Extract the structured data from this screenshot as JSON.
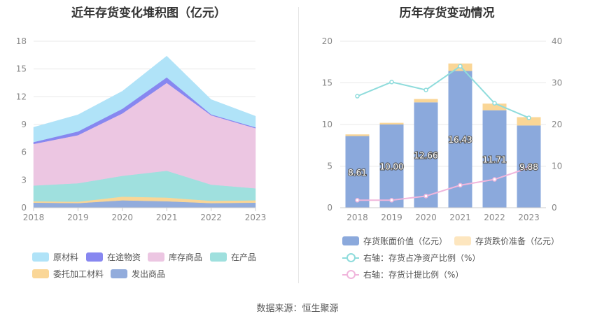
{
  "left": {
    "title": "近年存货变化堆积图（亿元）",
    "legend": [
      {
        "label": "原材料",
        "color": "#b0e3f8"
      },
      {
        "label": "在途物资",
        "color": "#8787f0"
      },
      {
        "label": "库存商品",
        "color": "#ecc6e2"
      },
      {
        "label": "在产品",
        "color": "#9fe0de"
      },
      {
        "label": "委托加工材料",
        "color": "#fad696"
      },
      {
        "label": "发出商品",
        "color": "#92acdc"
      }
    ]
  },
  "right": {
    "title": "历年存货变动情况",
    "legend": {
      "bar_value": "存货账面价值（亿元）",
      "bar_reserve": "存货跌价准备（亿元）",
      "line_ratio": "右轴：存货占净资产比例（%）",
      "line_provision": "右轴：存货计提比例（%）"
    }
  },
  "source": "数据来源：恒生聚源",
  "chart_data": [
    {
      "type": "area",
      "stacked": true,
      "title": "近年存货变化堆积图（亿元）",
      "x": [
        "2018",
        "2019",
        "2020",
        "2021",
        "2022",
        "2023"
      ],
      "ylim": [
        0,
        18
      ],
      "yticks": [
        0,
        3,
        6,
        9,
        12,
        15,
        18
      ],
      "series": [
        {
          "name": "发出商品",
          "color": "#92acdc",
          "values": [
            0.55,
            0.5,
            0.8,
            0.7,
            0.5,
            0.55
          ]
        },
        {
          "name": "委托加工材料",
          "color": "#fad696",
          "values": [
            0.15,
            0.15,
            0.4,
            0.4,
            0.25,
            0.25
          ]
        },
        {
          "name": "在产品",
          "color": "#9fe0de",
          "values": [
            1.7,
            2.0,
            2.25,
            2.9,
            1.75,
            1.3
          ]
        },
        {
          "name": "库存商品",
          "color": "#ecc6e2",
          "values": [
            4.5,
            5.2,
            6.75,
            9.5,
            7.5,
            6.5
          ]
        },
        {
          "name": "在途物资",
          "color": "#8787f0",
          "values": [
            0.2,
            0.4,
            0.5,
            0.6,
            0.1,
            0.1
          ]
        },
        {
          "name": "原材料",
          "color": "#b0e3f8",
          "values": [
            1.6,
            1.8,
            1.9,
            2.3,
            1.6,
            1.2
          ]
        }
      ]
    },
    {
      "type": "bar",
      "stacked": true,
      "title": "历年存货变动情况",
      "categories": [
        "2018",
        "2019",
        "2020",
        "2021",
        "2022",
        "2023"
      ],
      "ylim": [
        0,
        20
      ],
      "yticks": [
        0,
        5,
        10,
        15,
        20
      ],
      "y2lim": [
        0,
        40
      ],
      "y2ticks": [
        0,
        10,
        20,
        30,
        40
      ],
      "series": [
        {
          "name": "存货账面价值（亿元）",
          "color": "#8ba9dc",
          "values": [
            8.61,
            10.0,
            12.66,
            16.43,
            11.71,
            9.88
          ],
          "labels": [
            "8.61",
            "10.00",
            "12.66",
            "16.43",
            "11.71",
            "9.88"
          ]
        },
        {
          "name": "存货跌价准备（亿元）",
          "color": "#fad696",
          "values": [
            0.2,
            0.2,
            0.4,
            0.9,
            0.8,
            1.0
          ]
        }
      ],
      "lines": [
        {
          "name": "右轴：存货占净资产比例（%）",
          "axis": "right",
          "color": "#8fdcdc",
          "values": [
            26.8,
            30.2,
            28.3,
            34.0,
            25.1,
            21.6
          ]
        },
        {
          "name": "右轴：存货计提比例（%）",
          "axis": "right",
          "color": "#f0b6dc",
          "values": [
            1.8,
            1.8,
            2.8,
            5.4,
            6.8,
            9.6
          ]
        }
      ]
    }
  ]
}
